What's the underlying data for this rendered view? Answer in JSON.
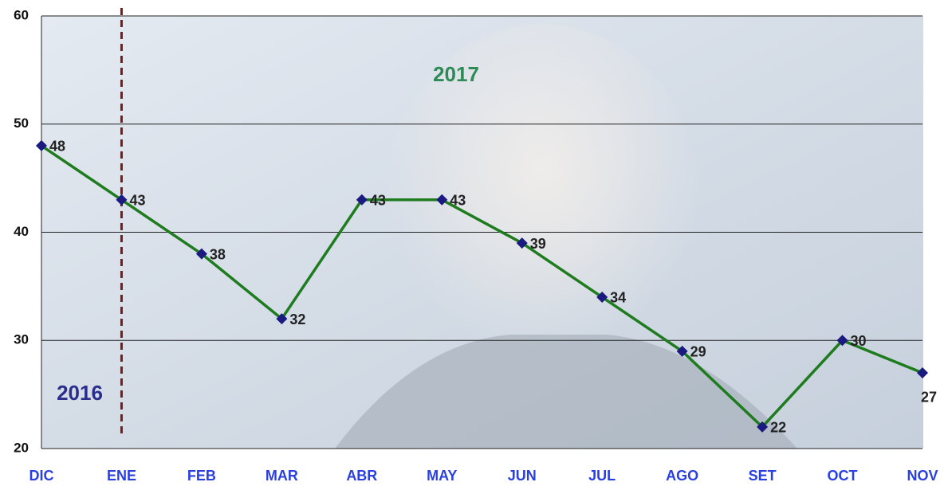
{
  "chart_data": {
    "type": "line",
    "categories": [
      "DIC",
      "ENE",
      "FEB",
      "MAR",
      "ABR",
      "MAY",
      "JUN",
      "JUL",
      "AGO",
      "SET",
      "OCT",
      "NOV"
    ],
    "series": [
      {
        "color": "#1e7b1e",
        "marker_color": "#1a1a80",
        "values": [
          48,
          43,
          38,
          32,
          43,
          43,
          39,
          34,
          29,
          22,
          30,
          27
        ]
      }
    ],
    "ylim": [
      20,
      60
    ],
    "yticks": [
      20,
      30,
      40,
      50,
      60
    ],
    "grid": true,
    "annotations": [
      "2017",
      "2016"
    ]
  }
}
